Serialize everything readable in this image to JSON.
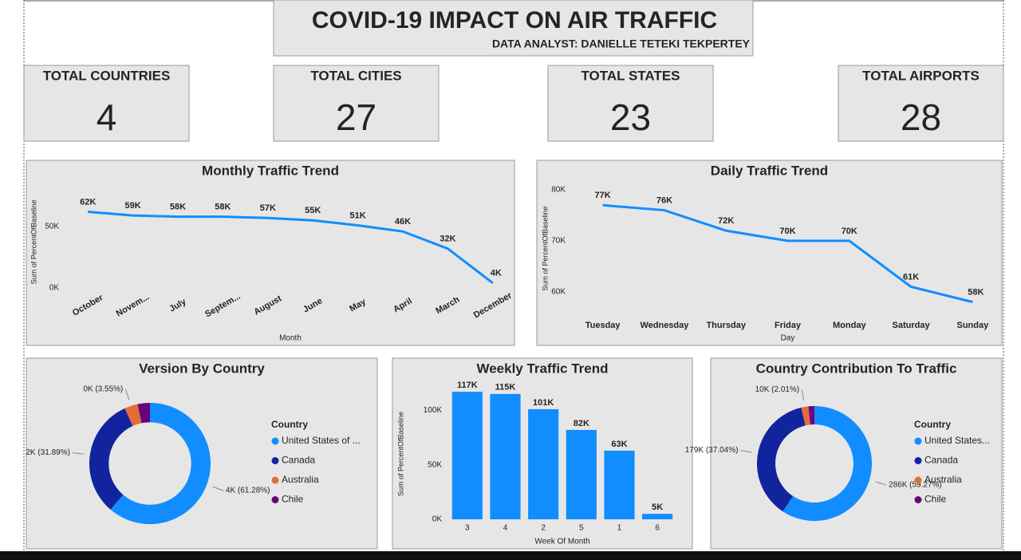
{
  "header": {
    "title": "COVID-19 IMPACT ON AIR TRAFFIC",
    "subtitle": "DATA ANALYST: DANIELLE TETEKI TEKPERTEY"
  },
  "cards": [
    {
      "label": "TOTAL COUNTRIES",
      "value": 4
    },
    {
      "label": "TOTAL CITIES",
      "value": 27
    },
    {
      "label": "TOTAL STATES",
      "value": 23
    },
    {
      "label": "TOTAL AIRPORTS",
      "value": 28
    }
  ],
  "chart_data": [
    {
      "type": "line",
      "title": "Monthly Traffic Trend",
      "x_label": "Month",
      "y_label": "Sum of PercentOfBaseline",
      "categories": [
        "October",
        "Novem...",
        "July",
        "Septem...",
        "August",
        "June",
        "May",
        "April",
        "March",
        "December"
      ],
      "values": [
        62000,
        59000,
        58000,
        58000,
        57000,
        55000,
        51000,
        46000,
        32000,
        4000
      ],
      "value_labels": [
        "62K",
        "59K",
        "58K",
        "58K",
        "57K",
        "55K",
        "51K",
        "46K",
        "32K",
        "4K"
      ],
      "color": "#118dff",
      "ylim": [
        0,
        75000
      ],
      "yticks": [
        {
          "value": 0,
          "label": "0K"
        },
        {
          "value": 50000,
          "label": "50K"
        }
      ]
    },
    {
      "type": "line",
      "title": "Daily Traffic Trend",
      "x_label": "Day",
      "y_label": "Sum of PercentOfBaseline",
      "categories": [
        "Tuesday",
        "Wednesday",
        "Thursday",
        "Friday",
        "Monday",
        "Saturday",
        "Sunday"
      ],
      "values": [
        77000,
        76000,
        72000,
        70000,
        70000,
        61000,
        58000
      ],
      "value_labels": [
        "77K",
        "76K",
        "72K",
        "70K",
        "70K",
        "61K",
        "58K"
      ],
      "color": "#118dff",
      "ylim": [
        57000,
        80000
      ],
      "yticks": [
        {
          "value": 60000,
          "label": "60K"
        },
        {
          "value": 70000,
          "label": "70K"
        },
        {
          "value": 80000,
          "label": "80K"
        }
      ]
    },
    {
      "type": "donut",
      "title": "Version By Country",
      "legend_title": "Country",
      "categories": [
        "United States of ...",
        "Canada",
        "Australia",
        "Chile"
      ],
      "values": [
        61.28,
        31.89,
        3.55,
        3.28
      ],
      "value_labels": [
        "4K (61.28%)",
        "2K (31.89%)",
        "0K (3.55%)",
        null
      ],
      "colors": [
        "#118dff",
        "#12239e",
        "#e66c37",
        "#6b007b"
      ]
    },
    {
      "type": "bar",
      "title": "Weekly Traffic Trend",
      "x_label": "Week Of Month",
      "y_label": "Sum of PercentOfBaseline",
      "categories": [
        "3",
        "4",
        "2",
        "5",
        "1",
        "6"
      ],
      "values": [
        117000,
        115000,
        101000,
        82000,
        63000,
        5000
      ],
      "value_labels": [
        "117K",
        "115K",
        "101K",
        "82K",
        "63K",
        "5K"
      ],
      "color": "#118dff",
      "ylim": [
        0,
        120000
      ],
      "yticks": [
        {
          "value": 0,
          "label": "0K"
        },
        {
          "value": 50000,
          "label": "50K"
        },
        {
          "value": 100000,
          "label": "100K"
        }
      ]
    },
    {
      "type": "donut",
      "title": "Country Contribution To Traffic",
      "legend_title": "Country",
      "categories": [
        "United States...",
        "Canada",
        "Australia",
        "Chile"
      ],
      "values": [
        59.27,
        37.04,
        2.01,
        1.68
      ],
      "value_labels": [
        "286K (59.27%)",
        "179K (37.04%)",
        "10K (2.01%)",
        null
      ],
      "colors": [
        "#118dff",
        "#12239e",
        "#e66c37",
        "#6b007b"
      ]
    }
  ]
}
